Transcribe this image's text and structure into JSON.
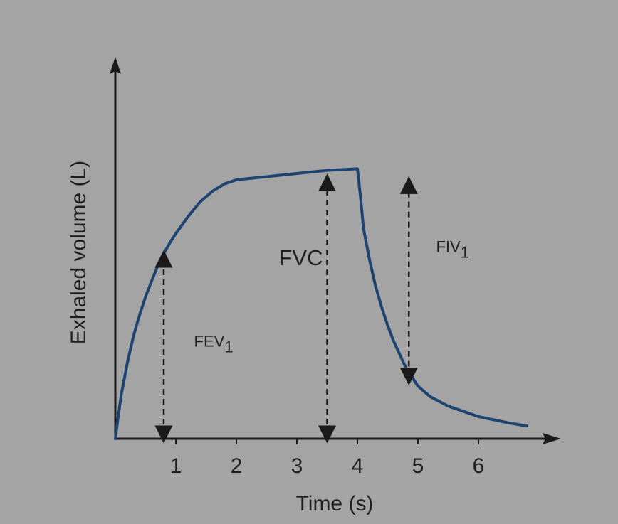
{
  "colors": {
    "background": "#a4a4a4",
    "axis": "#1a1a1a",
    "curve": "#1d4470",
    "arrow": "#1a1a1a"
  },
  "chart_data": {
    "type": "line",
    "title": "",
    "xlabel": "Time (s)",
    "ylabel": "Exhaled volume (L)",
    "xlim": [
      0,
      7
    ],
    "ylim": [
      0,
      6.5
    ],
    "x_ticks": [
      "1",
      "2",
      "3",
      "4",
      "5",
      "6"
    ],
    "grid": false,
    "series": [
      {
        "points": [
          [
            0.0,
            0.0
          ],
          [
            0.05,
            0.45
          ],
          [
            0.1,
            0.85
          ],
          [
            0.2,
            1.45
          ],
          [
            0.3,
            1.95
          ],
          [
            0.4,
            2.35
          ],
          [
            0.5,
            2.7
          ],
          [
            0.6,
            3.0
          ],
          [
            0.7,
            3.28
          ],
          [
            0.8,
            3.52
          ],
          [
            0.9,
            3.72
          ],
          [
            1.0,
            3.9
          ],
          [
            1.2,
            4.22
          ],
          [
            1.4,
            4.5
          ],
          [
            1.6,
            4.7
          ],
          [
            1.8,
            4.84
          ],
          [
            2.0,
            4.92
          ],
          [
            2.5,
            4.98
          ],
          [
            3.0,
            5.04
          ],
          [
            3.5,
            5.1
          ],
          [
            4.0,
            5.13
          ],
          [
            4.05,
            4.6
          ],
          [
            4.1,
            4.0
          ],
          [
            4.2,
            3.4
          ],
          [
            4.3,
            2.9
          ],
          [
            4.4,
            2.5
          ],
          [
            4.5,
            2.15
          ],
          [
            4.6,
            1.85
          ],
          [
            4.8,
            1.35
          ],
          [
            5.0,
            1.0
          ],
          [
            5.2,
            0.8
          ],
          [
            5.5,
            0.62
          ],
          [
            6.0,
            0.42
          ],
          [
            6.5,
            0.3
          ],
          [
            6.8,
            0.24
          ]
        ]
      }
    ],
    "annotations": [
      {
        "label": "FEV",
        "sub": "1",
        "x": 0.8,
        "y_from": 0.0,
        "y_to": 3.5,
        "label_x": 1.3,
        "label_y": 1.75,
        "size": "small"
      },
      {
        "label": "FVC",
        "sub": "",
        "x": 3.5,
        "y_from": 0.0,
        "y_to": 4.95,
        "label_x": 2.7,
        "label_y": 3.3,
        "size": "large"
      },
      {
        "label": "FIV",
        "sub": "1",
        "x": 4.85,
        "y_from": 1.1,
        "y_to": 4.9,
        "label_x": 5.3,
        "label_y": 3.55,
        "size": "small"
      }
    ]
  }
}
